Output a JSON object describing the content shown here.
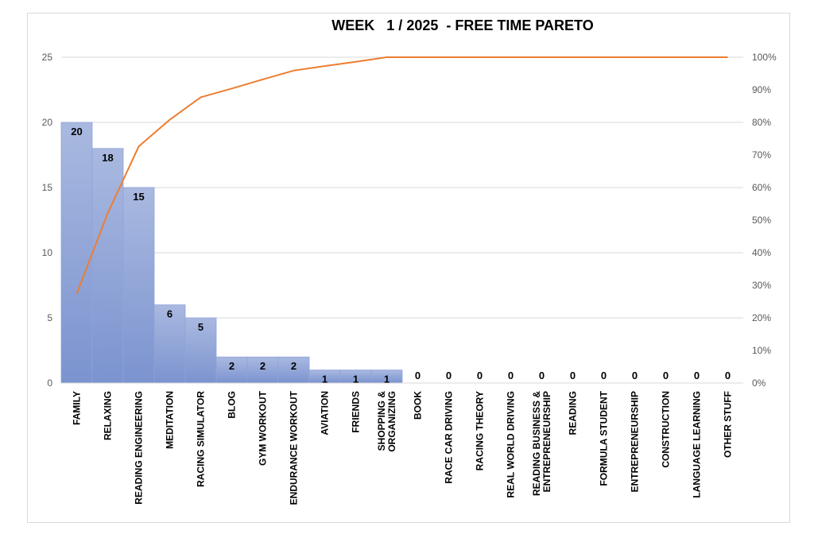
{
  "chart_data": {
    "type": "bar",
    "title": "WEEK   1 / 2025  - FREE TIME PARETO",
    "categories": [
      "FAMILY",
      "RELAXING",
      "READING ENGINEERING",
      "MEDITATION",
      "RACING SIMULATOR",
      "BLOG",
      "GYM WORKOUT",
      "ENDURANCE WORKOUT",
      "AVIATION",
      "FRIENDS",
      "SHOPPING & ORGANIZING",
      "BOOK",
      "RACE CAR DRIVING",
      "RACING THEORY",
      "REAL WORLD DRIVING",
      "READING BUSINESS & ENTREPRENEURSHIP",
      "READING",
      "FORMULA STUDENT",
      "ENTREPRENEURSHIP",
      "CONSTRUCTION",
      "LANGUAGE LEARNING",
      "OTHER STUFF"
    ],
    "category_lines": [
      [
        "FAMILY"
      ],
      [
        "RELAXING"
      ],
      [
        "READING ENGINEERING"
      ],
      [
        "MEDITATION"
      ],
      [
        "RACING SIMULATOR"
      ],
      [
        "BLOG"
      ],
      [
        "GYM WORKOUT"
      ],
      [
        "ENDURANCE WORKOUT"
      ],
      [
        "AVIATION"
      ],
      [
        "FRIENDS"
      ],
      [
        "SHOPPING &",
        "ORGANIZING"
      ],
      [
        "BOOK"
      ],
      [
        "RACE CAR DRIVING"
      ],
      [
        "RACING THEORY"
      ],
      [
        "REAL WORLD DRIVING"
      ],
      [
        "READING BUSINESS &",
        "ENTREPRENEURSHIP"
      ],
      [
        "READING"
      ],
      [
        "FORMULA STUDENT"
      ],
      [
        "ENTREPRENEURSHIP"
      ],
      [
        "CONSTRUCTION"
      ],
      [
        "LANGUAGE LEARNING"
      ],
      [
        "OTHER STUFF"
      ]
    ],
    "values": [
      20,
      18,
      15,
      6,
      5,
      2,
      2,
      2,
      1,
      1,
      1,
      0,
      0,
      0,
      0,
      0,
      0,
      0,
      0,
      0,
      0,
      0
    ],
    "cumulative_percent": [
      27.4,
      52.1,
      72.6,
      80.8,
      87.7,
      90.4,
      93.2,
      95.9,
      97.3,
      98.6,
      100,
      100,
      100,
      100,
      100,
      100,
      100,
      100,
      100,
      100,
      100,
      100
    ],
    "ylim": [
      0,
      25
    ],
    "yticks": [
      "0",
      "5",
      "10",
      "15",
      "20",
      "25"
    ],
    "y2lim": [
      0,
      100
    ],
    "y2ticks": [
      "0%",
      "10%",
      "20%",
      "30%",
      "40%",
      "50%",
      "60%",
      "70%",
      "80%",
      "90%",
      "100%"
    ],
    "grid": true,
    "colors": {
      "bar_top": "#a9b9e0",
      "bar_bottom": "#7b93cf",
      "bar_edge": "#8fa3d8",
      "line": "#ed7d31",
      "grid": "#d9d9d9"
    }
  }
}
